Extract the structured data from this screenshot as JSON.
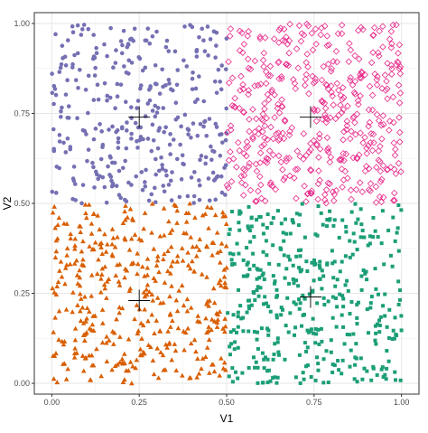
{
  "chart_data": {
    "type": "scatter",
    "title": "",
    "xlabel": "V1",
    "ylabel": "V2",
    "xlim": [
      -0.05,
      1.05
    ],
    "ylim": [
      -0.03,
      1.03
    ],
    "x_ticks": [
      0.0,
      0.25,
      0.5,
      0.75,
      1.0
    ],
    "x_tick_labels": [
      "0.00",
      "0.25",
      "0.50",
      "0.75",
      "1.00"
    ],
    "y_ticks": [
      0.0,
      0.25,
      0.5,
      0.75,
      1.0
    ],
    "y_tick_labels": [
      "0.00",
      "0.25",
      "0.50",
      "0.75",
      "1.00"
    ],
    "grid": true,
    "legend": "none",
    "theme": "bw",
    "clusters": [
      {
        "shape": "circle",
        "color": "#7570b3",
        "x_range": [
          0.0,
          0.5
        ],
        "y_range": [
          0.5,
          1.0
        ],
        "n_points": 350,
        "centroid": [
          0.25,
          0.74
        ]
      },
      {
        "shape": "diamond-open",
        "color": "#e7298a",
        "x_range": [
          0.5,
          1.0
        ],
        "y_range": [
          0.5,
          1.0
        ],
        "n_points": 450,
        "centroid": [
          0.74,
          0.74
        ]
      },
      {
        "shape": "triangle",
        "color": "#d95f02",
        "x_range": [
          0.0,
          0.5
        ],
        "y_range": [
          0.0,
          0.5
        ],
        "n_points": 420,
        "centroid": [
          0.25,
          0.23
        ]
      },
      {
        "shape": "square",
        "color": "#1b9e77",
        "x_range": [
          0.5,
          1.0
        ],
        "y_range": [
          0.0,
          0.5
        ],
        "n_points": 420,
        "centroid": [
          0.74,
          0.24
        ]
      }
    ]
  }
}
